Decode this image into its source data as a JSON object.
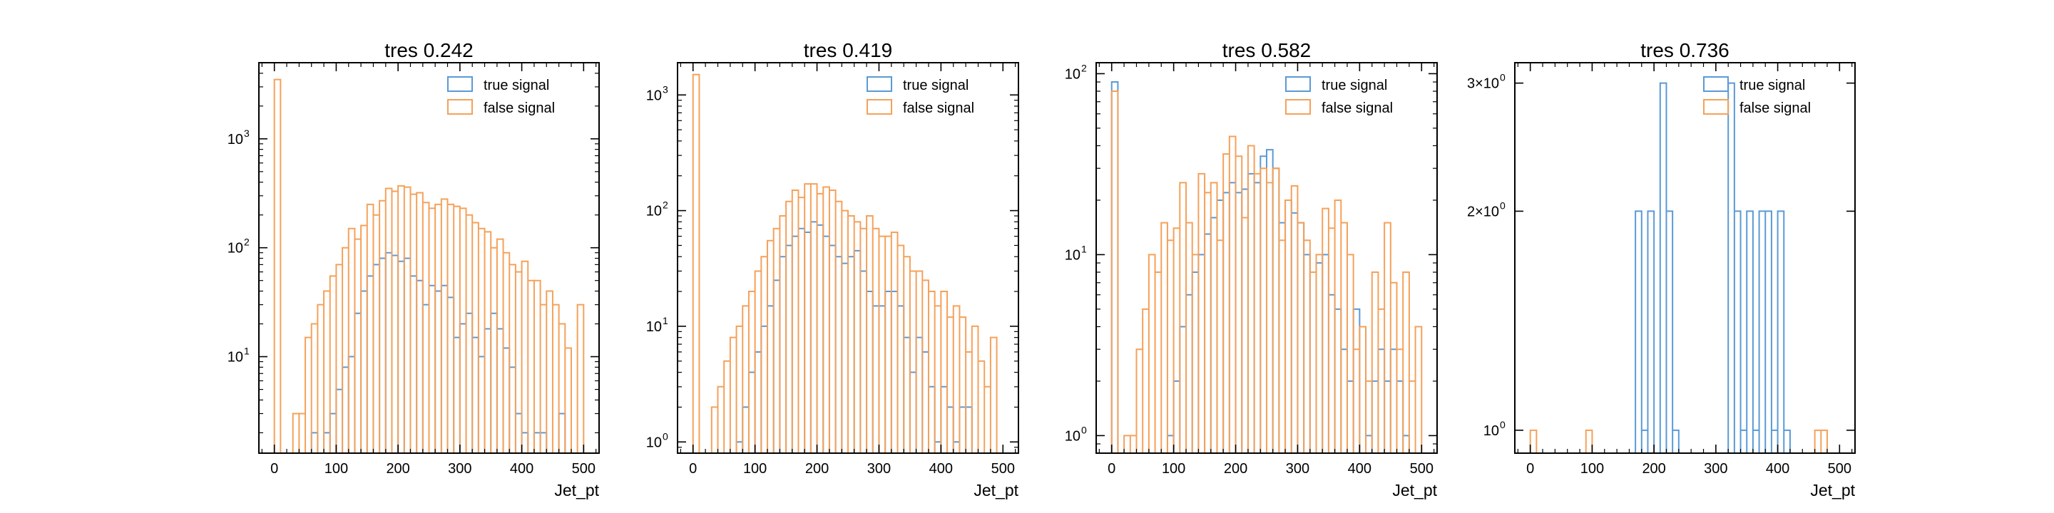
{
  "chart_data": [
    {
      "type": "histogram",
      "title": "tres 0.242",
      "xlabel": "Jet_pt",
      "ylabel": "",
      "xlim": [
        -25,
        525
      ],
      "xticks": [
        0,
        100,
        200,
        300,
        400,
        500
      ],
      "ylog": true,
      "ylim": [
        1.3,
        5000
      ],
      "yticks": [
        {
          "value": 10,
          "label": "10",
          "exp": "1"
        },
        {
          "value": 100,
          "label": "10",
          "exp": "2"
        },
        {
          "value": 1000,
          "label": "10",
          "exp": "3"
        }
      ],
      "legend": {
        "position": "top-right",
        "entries": [
          "true signal",
          "false signal"
        ]
      },
      "bin_edges_start": 0,
      "bin_width": 10,
      "series": [
        {
          "name": "true signal",
          "color": "#5a9ad6",
          "values": [
            0,
            0,
            0,
            0,
            0,
            0,
            2,
            0,
            2,
            3,
            5,
            8,
            10,
            25,
            40,
            55,
            70,
            80,
            90,
            85,
            75,
            80,
            55,
            50,
            30,
            45,
            40,
            45,
            35,
            15,
            20,
            25,
            15,
            10,
            18,
            25,
            18,
            12,
            8,
            3,
            2,
            0,
            2,
            2,
            0,
            0,
            3,
            0,
            0,
            0,
            0
          ]
        },
        {
          "name": "false signal",
          "color": "#f5a15a",
          "values": [
            3500,
            0,
            0,
            3,
            3,
            15,
            20,
            30,
            40,
            55,
            70,
            100,
            150,
            120,
            160,
            250,
            200,
            270,
            350,
            330,
            370,
            360,
            310,
            320,
            260,
            230,
            250,
            280,
            250,
            240,
            230,
            200,
            170,
            150,
            140,
            100,
            120,
            90,
            70,
            60,
            75,
            50,
            50,
            30,
            40,
            30,
            20,
            12,
            0,
            30,
            0
          ]
        }
      ]
    },
    {
      "type": "histogram",
      "title": "tres 0.419",
      "xlabel": "Jet_pt",
      "ylabel": "",
      "xlim": [
        -25,
        525
      ],
      "xticks": [
        0,
        100,
        200,
        300,
        400,
        500
      ],
      "ylog": true,
      "ylim": [
        0.8,
        1900
      ],
      "yticks": [
        {
          "value": 1,
          "label": "10",
          "exp": "0"
        },
        {
          "value": 10,
          "label": "10",
          "exp": "1"
        },
        {
          "value": 100,
          "label": "10",
          "exp": "2"
        },
        {
          "value": 1000,
          "label": "10",
          "exp": "3"
        }
      ],
      "legend": {
        "position": "top-right",
        "entries": [
          "true signal",
          "false signal"
        ]
      },
      "bin_edges_start": 0,
      "bin_width": 10,
      "series": [
        {
          "name": "true signal",
          "color": "#5a9ad6",
          "values": [
            0,
            0,
            0,
            0,
            0,
            0,
            0,
            1,
            2,
            4,
            6,
            10,
            15,
            25,
            40,
            50,
            60,
            70,
            65,
            80,
            75,
            60,
            50,
            40,
            35,
            40,
            45,
            30,
            20,
            15,
            15,
            20,
            20,
            15,
            8,
            4,
            8,
            6,
            3,
            1,
            3,
            2,
            1,
            2,
            2,
            0,
            0,
            0,
            0,
            0,
            0
          ]
        },
        {
          "name": "false signal",
          "color": "#f5a15a",
          "values": [
            1500,
            0,
            0,
            2,
            3,
            5,
            8,
            10,
            15,
            20,
            30,
            40,
            55,
            70,
            90,
            120,
            150,
            130,
            170,
            170,
            140,
            160,
            150,
            120,
            100,
            90,
            80,
            70,
            90,
            70,
            60,
            60,
            65,
            50,
            40,
            30,
            30,
            25,
            20,
            15,
            20,
            12,
            15,
            12,
            6,
            10,
            5,
            3,
            8,
            0,
            0
          ]
        }
      ]
    },
    {
      "type": "histogram",
      "title": "tres 0.582",
      "xlabel": "Jet_pt",
      "ylabel": "",
      "xlim": [
        -25,
        525
      ],
      "xticks": [
        0,
        100,
        200,
        300,
        400,
        500
      ],
      "ylog": true,
      "ylim": [
        0.8,
        115
      ],
      "yticks": [
        {
          "value": 1,
          "label": "10",
          "exp": "0"
        },
        {
          "value": 10,
          "label": "10",
          "exp": "1"
        },
        {
          "value": 100,
          "label": "10",
          "exp": "2"
        }
      ],
      "legend": {
        "position": "top-right",
        "entries": [
          "true signal",
          "false signal"
        ]
      },
      "bin_edges_start": 0,
      "bin_width": 10,
      "series": [
        {
          "name": "true signal",
          "color": "#5a9ad6",
          "values": [
            90,
            0,
            0,
            0,
            0,
            0,
            0,
            0,
            0,
            1,
            2,
            4,
            6,
            8,
            10,
            13,
            16,
            20,
            22,
            25,
            22,
            23,
            28,
            25,
            35,
            38,
            30,
            15,
            20,
            17,
            15,
            10,
            8,
            9,
            10,
            6,
            5,
            3,
            2,
            5,
            4,
            1,
            2,
            3,
            2,
            3,
            2,
            1,
            0,
            0,
            0
          ]
        },
        {
          "name": "false signal",
          "color": "#f5a15a",
          "values": [
            80,
            0,
            1,
            1,
            3,
            5,
            10,
            8,
            15,
            12,
            14,
            25,
            15,
            10,
            28,
            22,
            25,
            12,
            36,
            45,
            35,
            16,
            40,
            28,
            30,
            25,
            30,
            12,
            20,
            24,
            15,
            12,
            8,
            10,
            18,
            14,
            20,
            15,
            10,
            3,
            4,
            2,
            8,
            5,
            15,
            7,
            3,
            8,
            2,
            4,
            0
          ]
        }
      ]
    },
    {
      "type": "histogram",
      "title": "tres 0.736",
      "xlabel": "Jet_pt",
      "ylabel": "",
      "xlim": [
        -25,
        525
      ],
      "xticks": [
        0,
        100,
        200,
        300,
        400,
        500
      ],
      "ylog": true,
      "ylim": [
        0.93,
        3.2
      ],
      "yticks": [
        {
          "value": 1,
          "label": "10",
          "exp": "0",
          "prefix": ""
        },
        {
          "value": 2,
          "label": "2×10",
          "exp": "0",
          "prefix": ""
        },
        {
          "value": 3,
          "label": "3×10",
          "exp": "0",
          "prefix": ""
        }
      ],
      "legend": {
        "position": "top-right",
        "entries": [
          "true signal",
          "false signal"
        ]
      },
      "bin_edges_start": 0,
      "bin_width": 10,
      "series": [
        {
          "name": "true signal",
          "color": "#5a9ad6",
          "values": [
            0,
            0,
            0,
            0,
            0,
            0,
            0,
            0,
            0,
            0,
            0,
            0,
            0,
            0,
            0,
            0,
            0,
            2,
            1,
            2,
            0,
            3,
            2,
            1,
            0,
            0,
            0,
            0,
            0,
            0,
            0,
            0,
            3,
            2,
            1,
            2,
            1,
            2,
            2,
            1,
            2,
            1,
            0,
            0,
            0,
            0,
            0,
            0,
            0,
            0,
            0
          ]
        },
        {
          "name": "false signal",
          "color": "#f5a15a",
          "values": [
            1,
            0,
            0,
            0,
            0,
            0,
            0,
            0,
            0,
            1,
            0,
            0,
            0,
            0,
            0,
            0,
            0,
            0,
            0,
            0,
            0,
            0,
            0,
            0,
            0,
            0,
            0,
            0,
            0,
            0,
            0,
            0,
            0,
            0,
            0,
            0,
            0,
            0,
            0,
            0,
            0,
            0,
            0,
            0,
            0,
            0,
            1,
            1,
            0,
            0,
            0
          ]
        }
      ]
    }
  ]
}
